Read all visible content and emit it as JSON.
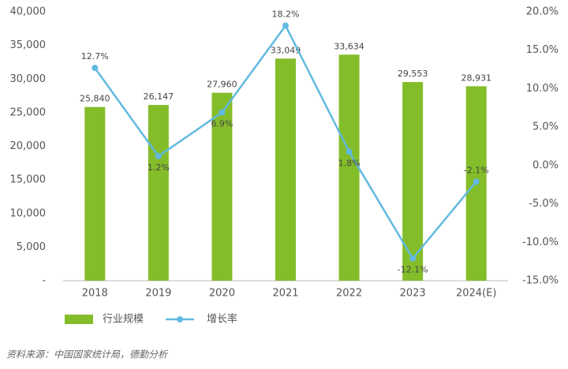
{
  "chart_data": {
    "type": "bar_line",
    "categories": [
      "2018",
      "2019",
      "2020",
      "2021",
      "2022",
      "2023",
      "2024(E)"
    ],
    "series": [
      {
        "name": "行业规模",
        "type": "bar",
        "color": "#84bd2a",
        "values": [
          25840,
          26147,
          27960,
          33049,
          33634,
          29553,
          28931
        ],
        "value_labels": [
          "25,840",
          "26,147",
          "27,960",
          "33,049",
          "33,634",
          "29,553",
          "28,931"
        ]
      },
      {
        "name": "增长率",
        "type": "line",
        "axis": "y2",
        "color": "#62b9e0",
        "values": [
          12.7,
          1.2,
          6.9,
          18.2,
          1.8,
          -12.1,
          -2.1
        ],
        "value_labels": [
          "12.7%",
          "1.2%",
          "6.9%",
          "18.2%",
          "1.8%",
          "-12.1%",
          "-2.1%"
        ]
      }
    ],
    "ylim": [
      0,
      40000
    ],
    "yticks": [
      {
        "value": 0,
        "label": "-"
      },
      {
        "value": 5000,
        "label": "5,000"
      },
      {
        "value": 10000,
        "label": "10,000"
      },
      {
        "value": 15000,
        "label": "15,000"
      },
      {
        "value": 20000,
        "label": "20,000"
      },
      {
        "value": 25000,
        "label": "25,000"
      },
      {
        "value": 30000,
        "label": "30,000"
      },
      {
        "value": 35000,
        "label": "35,000"
      },
      {
        "value": 40000,
        "label": "40,000"
      }
    ],
    "y2lim": [
      -15,
      20
    ],
    "y2ticks": [
      {
        "value": -15,
        "label": "-15.0%"
      },
      {
        "value": -10,
        "label": "-10.0%"
      },
      {
        "value": -5,
        "label": "-5.0%"
      },
      {
        "value": 0,
        "label": "0.0%"
      },
      {
        "value": 5,
        "label": "5.0%"
      },
      {
        "value": 10,
        "label": "10.0%"
      },
      {
        "value": 15,
        "label": "15.0%"
      },
      {
        "value": 20,
        "label": "20.0%"
      }
    ],
    "source": "资料来源：中国国家统计局，德勤分析"
  }
}
